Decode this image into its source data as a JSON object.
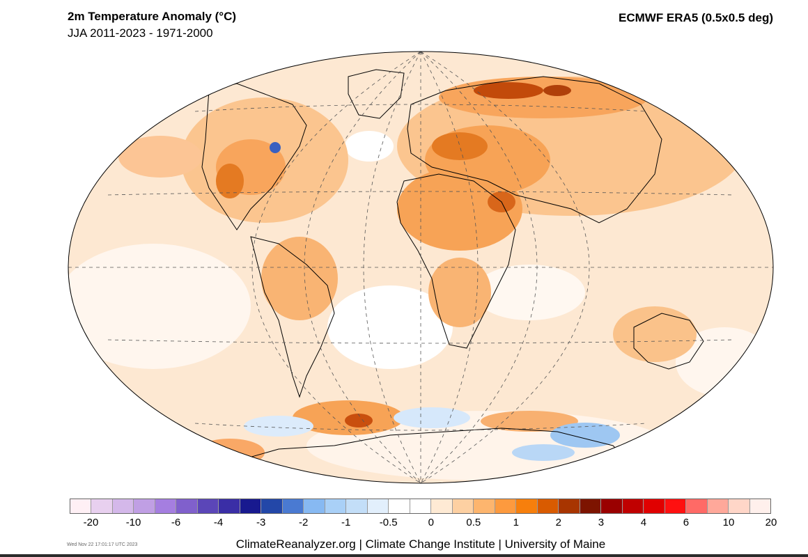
{
  "header": {
    "title": "2m Temperature Anomaly (°C)",
    "subtitle": "JJA 2011-2023 - 1971-2000",
    "source": "ECMWF ERA5 (0.5x0.5 deg)"
  },
  "legend": {
    "colors": [
      "#fff0f5",
      "#e8d0ef",
      "#d4b8ea",
      "#c09fe4",
      "#a57ee0",
      "#8060cc",
      "#5b46b8",
      "#3a2ea6",
      "#18198f",
      "#2347a8",
      "#4a7ad2",
      "#87b9f2",
      "#a9d0f7",
      "#c3def8",
      "#e2effc",
      "#ffffff",
      "#ffffff",
      "#feead4",
      "#fdd0a2",
      "#fdb56e",
      "#fd9a3e",
      "#f77f0c",
      "#d95b00",
      "#a83500",
      "#7d1400",
      "#9a0000",
      "#c00000",
      "#e00000",
      "#ff1010",
      "#ff6a66",
      "#ffa89a",
      "#ffd6c8",
      "#fff0ec"
    ],
    "tick_labels": [
      "-20",
      "-10",
      "-6",
      "-4",
      "-3",
      "-2",
      "-1",
      "-0.5",
      "0",
      "0.5",
      "1",
      "2",
      "3",
      "4",
      "6",
      "10",
      "20"
    ]
  },
  "footer": {
    "credits": "ClimateReanalyzer.org | Climate Change Institute | University of Maine",
    "timestamp": "Wed Nov 22 17:01:17 UTC 2023"
  }
}
